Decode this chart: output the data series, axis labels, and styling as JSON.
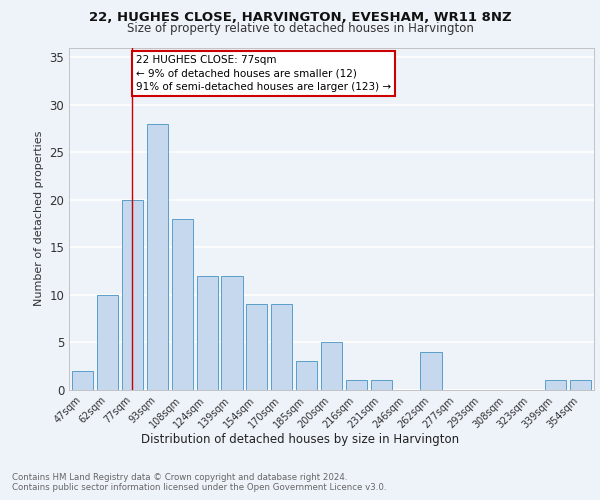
{
  "title": "22, HUGHES CLOSE, HARVINGTON, EVESHAM, WR11 8NZ",
  "subtitle": "Size of property relative to detached houses in Harvington",
  "xlabel": "Distribution of detached houses by size in Harvington",
  "ylabel": "Number of detached properties",
  "categories": [
    "47sqm",
    "62sqm",
    "77sqm",
    "93sqm",
    "108sqm",
    "124sqm",
    "139sqm",
    "154sqm",
    "170sqm",
    "185sqm",
    "200sqm",
    "216sqm",
    "231sqm",
    "246sqm",
    "262sqm",
    "277sqm",
    "293sqm",
    "308sqm",
    "323sqm",
    "339sqm",
    "354sqm"
  ],
  "values": [
    2,
    10,
    20,
    28,
    18,
    12,
    12,
    9,
    9,
    3,
    5,
    1,
    1,
    0,
    4,
    0,
    0,
    0,
    0,
    1,
    1
  ],
  "bar_color": "#c5d8ed",
  "bar_edge_color": "#5a9ec9",
  "highlight_x": "77sqm",
  "highlight_line_color": "#cc0000",
  "annotation_text": "22 HUGHES CLOSE: 77sqm\n← 9% of detached houses are smaller (12)\n91% of semi-detached houses are larger (123) →",
  "annotation_box_color": "#ffffff",
  "annotation_box_edge_color": "#cc0000",
  "ylim": [
    0,
    36
  ],
  "yticks": [
    0,
    5,
    10,
    15,
    20,
    25,
    30,
    35
  ],
  "background_color": "#eef2f9",
  "grid_color": "#ffffff",
  "footer_line1": "Contains HM Land Registry data © Crown copyright and database right 2024.",
  "footer_line2": "Contains public sector information licensed under the Open Government Licence v3.0."
}
